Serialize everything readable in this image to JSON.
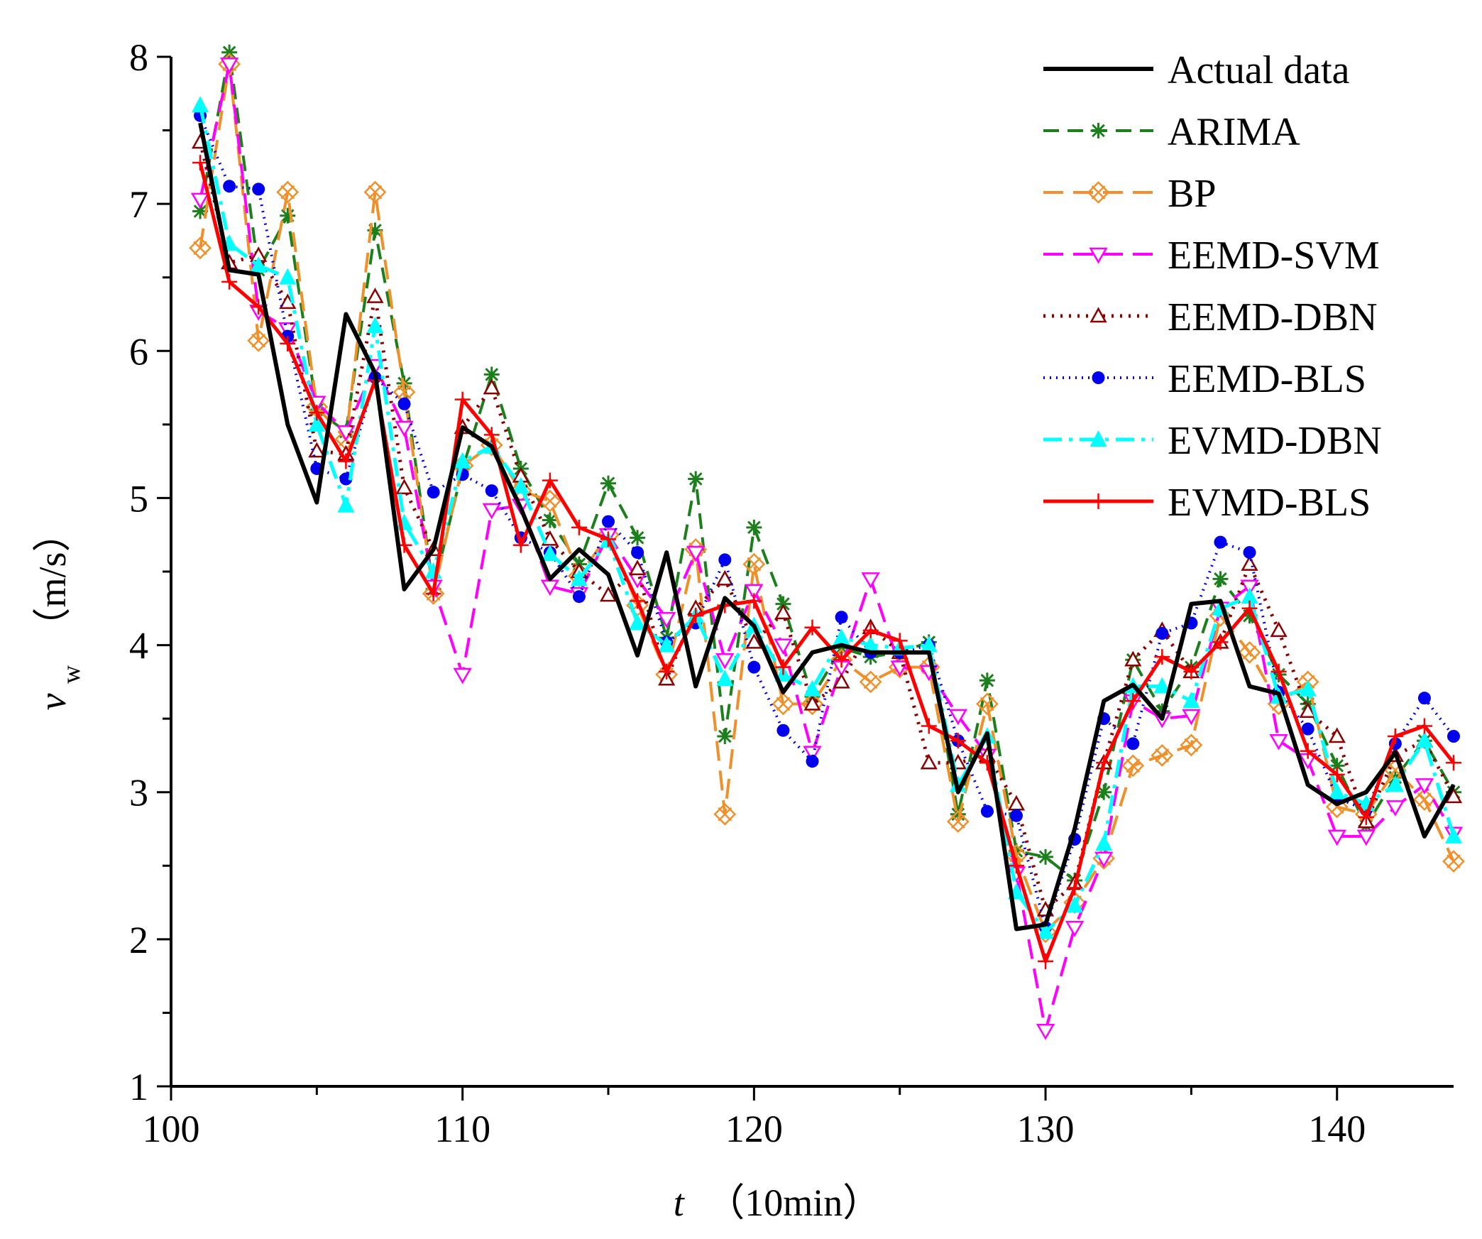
{
  "chart_data": {
    "type": "line",
    "xlabel_var": "t",
    "xlabel_unit": "（10min）",
    "ylabel_var": "v",
    "ylabel_sub": "w",
    "ylabel_unit": "（m/s）",
    "xlim": [
      100,
      144
    ],
    "ylim": [
      1,
      8
    ],
    "xticks": [
      100,
      110,
      120,
      130,
      140
    ],
    "yticks": [
      1,
      2,
      3,
      4,
      5,
      6,
      7,
      8
    ],
    "legend_position": "top-right",
    "x": [
      101,
      102,
      103,
      104,
      105,
      106,
      107,
      108,
      109,
      110,
      111,
      112,
      113,
      114,
      115,
      116,
      117,
      118,
      119,
      120,
      121,
      122,
      123,
      124,
      125,
      126,
      127,
      128,
      129,
      130,
      131,
      132,
      133,
      134,
      135,
      136,
      137,
      138,
      139,
      140,
      141,
      142,
      143,
      144
    ],
    "series": [
      {
        "name": "Actual data",
        "color": "#000000",
        "dash": "",
        "width": 6,
        "marker": "none",
        "values": [
          7.55,
          6.55,
          6.52,
          5.5,
          4.97,
          6.25,
          5.85,
          4.38,
          4.65,
          5.48,
          5.35,
          4.93,
          4.45,
          4.65,
          4.48,
          3.93,
          4.63,
          3.72,
          4.32,
          4.13,
          3.68,
          3.95,
          4.0,
          3.95,
          3.95,
          3.95,
          3.0,
          3.4,
          2.07,
          2.1,
          2.75,
          3.62,
          3.73,
          3.5,
          4.28,
          4.3,
          3.72,
          3.67,
          3.05,
          2.92,
          3.0,
          3.27,
          2.7,
          3.05
        ]
      },
      {
        "name": "ARIMA",
        "color": "#1b7f1b",
        "dash": "22,12",
        "width": 4,
        "marker": "star",
        "values": [
          6.95,
          8.03,
          6.55,
          6.92,
          5.6,
          5.45,
          6.82,
          5.78,
          4.38,
          5.2,
          5.84,
          5.2,
          4.85,
          4.55,
          5.1,
          4.73,
          4.05,
          5.13,
          3.38,
          4.8,
          4.28,
          3.65,
          3.98,
          3.92,
          3.95,
          4.02,
          2.85,
          3.76,
          2.6,
          2.56,
          2.4,
          3.0,
          3.9,
          3.55,
          3.85,
          4.45,
          4.2,
          3.8,
          3.6,
          3.18,
          2.77,
          3.1,
          3.35,
          3.0
        ]
      },
      {
        "name": "BP",
        "color": "#f0902a",
        "dash": "28,14",
        "width": 4,
        "marker": "xbox",
        "values": [
          6.7,
          7.95,
          6.07,
          7.08,
          5.62,
          5.4,
          7.08,
          5.72,
          4.35,
          5.22,
          5.36,
          5.05,
          4.98,
          4.47,
          4.75,
          4.27,
          3.8,
          4.65,
          2.85,
          4.55,
          3.6,
          3.6,
          3.9,
          3.75,
          3.85,
          3.85,
          2.8,
          3.6,
          2.57,
          2.05,
          2.25,
          2.55,
          3.18,
          3.25,
          3.32,
          4.2,
          3.95,
          3.6,
          3.75,
          2.9,
          2.85,
          3.15,
          2.95,
          2.53
        ]
      },
      {
        "name": "EEMD-SVM",
        "color": "#ff00ff",
        "dash": "28,14",
        "width": 4,
        "marker": "tridown",
        "values": [
          7.03,
          7.95,
          6.27,
          6.15,
          5.65,
          5.45,
          5.9,
          5.48,
          4.4,
          3.8,
          4.92,
          4.95,
          4.4,
          4.35,
          4.75,
          4.45,
          4.18,
          4.63,
          3.9,
          4.37,
          4.0,
          3.27,
          3.85,
          4.45,
          3.85,
          3.82,
          3.52,
          3.25,
          2.45,
          1.38,
          2.08,
          2.55,
          3.62,
          3.5,
          3.52,
          4.25,
          4.4,
          3.35,
          3.22,
          2.7,
          2.7,
          2.9,
          3.05,
          2.72
        ]
      },
      {
        "name": "EEMD-DBN",
        "color": "#8b0000",
        "dash": "3,9",
        "width": 5,
        "marker": "triup",
        "values": [
          7.42,
          6.6,
          6.65,
          6.33,
          5.32,
          5.3,
          6.37,
          5.07,
          4.65,
          5.48,
          5.75,
          5.15,
          4.72,
          4.5,
          4.34,
          4.52,
          3.77,
          4.25,
          4.45,
          4.02,
          4.22,
          3.6,
          3.75,
          4.12,
          3.95,
          3.2,
          3.2,
          3.25,
          2.92,
          2.2,
          2.38,
          3.2,
          3.9,
          4.1,
          3.82,
          4.02,
          4.55,
          4.1,
          3.55,
          3.38,
          2.8,
          3.25,
          3.35,
          2.97
        ]
      },
      {
        "name": "EEMD-BLS",
        "color": "#0000ee",
        "dash": "2,7",
        "width": 4,
        "marker": "dot",
        "values": [
          7.6,
          7.12,
          7.1,
          6.1,
          5.2,
          5.13,
          5.82,
          5.64,
          5.04,
          5.16,
          5.05,
          4.73,
          4.63,
          4.33,
          4.84,
          4.63,
          4.02,
          4.15,
          4.58,
          3.85,
          3.42,
          3.21,
          4.19,
          3.95,
          3.95,
          4.0,
          3.35,
          2.87,
          2.84,
          2.08,
          2.68,
          3.5,
          3.33,
          4.08,
          4.15,
          4.7,
          4.63,
          3.68,
          3.43,
          2.96,
          2.88,
          3.33,
          3.64,
          3.38
        ]
      },
      {
        "name": "EVMD-DBN",
        "color": "#00ffff",
        "dash": "26,10,5,10",
        "width": 5,
        "marker": "fillup",
        "values": [
          7.67,
          6.73,
          6.58,
          6.5,
          5.5,
          4.95,
          6.17,
          4.83,
          4.5,
          5.25,
          5.35,
          5.08,
          4.62,
          4.45,
          4.71,
          4.15,
          4.0,
          4.2,
          3.77,
          4.13,
          3.8,
          3.7,
          4.05,
          4.0,
          3.98,
          4.0,
          3.05,
          3.38,
          2.32,
          2.05,
          2.23,
          2.65,
          3.72,
          3.72,
          3.62,
          4.25,
          4.33,
          3.65,
          3.7,
          3.0,
          2.92,
          3.05,
          3.35,
          2.7
        ]
      },
      {
        "name": "EVMD-BLS",
        "color": "#ff0000",
        "dash": "",
        "width": 5,
        "marker": "plus",
        "values": [
          7.28,
          6.47,
          6.3,
          6.05,
          5.58,
          5.25,
          5.8,
          4.68,
          4.35,
          5.67,
          5.43,
          4.68,
          5.12,
          4.8,
          4.72,
          4.3,
          3.82,
          4.2,
          4.27,
          4.3,
          3.85,
          4.12,
          3.9,
          4.1,
          4.03,
          3.45,
          3.35,
          3.2,
          2.5,
          1.85,
          2.35,
          3.2,
          3.62,
          3.92,
          3.82,
          4.02,
          4.25,
          3.82,
          3.28,
          3.12,
          2.83,
          3.38,
          3.45,
          3.2
        ]
      }
    ]
  }
}
